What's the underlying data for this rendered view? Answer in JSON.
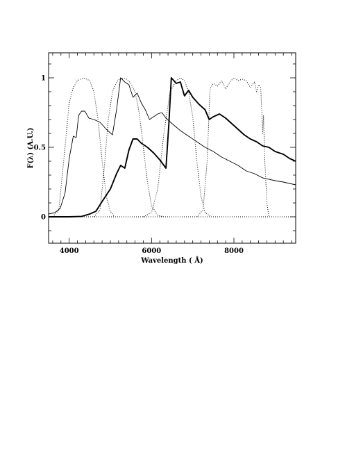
{
  "chart_data": {
    "type": "line",
    "title": "",
    "xlabel": "Wavelength ( Å)",
    "ylabel": "F(λ)  (A.U.)",
    "xlim": [
      3500,
      9500
    ],
    "ylim": [
      -0.19,
      1.18
    ],
    "x_ticks": [
      {
        "value": 4000,
        "label": "4000"
      },
      {
        "value": 6000,
        "label": "6000"
      },
      {
        "value": 8000,
        "label": "8000"
      }
    ],
    "y_ticks": [
      {
        "value": 0,
        "label": "0"
      },
      {
        "value": 0.5,
        "label": "0.5"
      },
      {
        "value": 1,
        "label": "1"
      }
    ],
    "x_minor_step": 200,
    "y_minor_step": 0.1,
    "grid": false,
    "legend": "none",
    "series": [
      {
        "style": "solid-thin",
        "points": [
          [
            3500,
            0.02
          ],
          [
            3650,
            0.03
          ],
          [
            3780,
            0.06
          ],
          [
            3900,
            0.17
          ],
          [
            4000,
            0.42
          ],
          [
            4100,
            0.58
          ],
          [
            4170,
            0.57
          ],
          [
            4230,
            0.73
          ],
          [
            4300,
            0.76
          ],
          [
            4380,
            0.76
          ],
          [
            4480,
            0.71
          ],
          [
            4600,
            0.7
          ],
          [
            4750,
            0.68
          ],
          [
            4900,
            0.63
          ],
          [
            5050,
            0.59
          ],
          [
            5150,
            0.77
          ],
          [
            5250,
            1.0
          ],
          [
            5350,
            0.97
          ],
          [
            5450,
            0.95
          ],
          [
            5550,
            0.86
          ],
          [
            5650,
            0.89
          ],
          [
            5750,
            0.82
          ],
          [
            5850,
            0.77
          ],
          [
            5950,
            0.7
          ],
          [
            6050,
            0.72
          ],
          [
            6150,
            0.74
          ],
          [
            6250,
            0.75
          ],
          [
            6350,
            0.71
          ],
          [
            6500,
            0.67
          ],
          [
            6700,
            0.62
          ],
          [
            6900,
            0.58
          ],
          [
            7100,
            0.54
          ],
          [
            7300,
            0.5
          ],
          [
            7500,
            0.47
          ],
          [
            7700,
            0.43
          ],
          [
            7900,
            0.4
          ],
          [
            8100,
            0.37
          ],
          [
            8300,
            0.33
          ],
          [
            8500,
            0.31
          ],
          [
            8700,
            0.28
          ],
          [
            9000,
            0.26
          ],
          [
            9200,
            0.25
          ],
          [
            9500,
            0.23
          ]
        ]
      },
      {
        "style": "solid-thick",
        "points": [
          [
            3500,
            0.0
          ],
          [
            4000,
            0.0
          ],
          [
            4300,
            0.003
          ],
          [
            4500,
            0.02
          ],
          [
            4650,
            0.04
          ],
          [
            4800,
            0.11
          ],
          [
            5000,
            0.2
          ],
          [
            5150,
            0.31
          ],
          [
            5250,
            0.37
          ],
          [
            5350,
            0.35
          ],
          [
            5450,
            0.48
          ],
          [
            5550,
            0.56
          ],
          [
            5650,
            0.56
          ],
          [
            5750,
            0.53
          ],
          [
            5900,
            0.5
          ],
          [
            6050,
            0.46
          ],
          [
            6200,
            0.41
          ],
          [
            6350,
            0.35
          ],
          [
            6420,
            0.67
          ],
          [
            6480,
            1.0
          ],
          [
            6600,
            0.96
          ],
          [
            6700,
            0.97
          ],
          [
            6800,
            0.87
          ],
          [
            6900,
            0.91
          ],
          [
            7000,
            0.86
          ],
          [
            7150,
            0.81
          ],
          [
            7300,
            0.77
          ],
          [
            7400,
            0.7
          ],
          [
            7500,
            0.72
          ],
          [
            7650,
            0.74
          ],
          [
            7800,
            0.71
          ],
          [
            7950,
            0.67
          ],
          [
            8100,
            0.63
          ],
          [
            8250,
            0.59
          ],
          [
            8400,
            0.56
          ],
          [
            8550,
            0.54
          ],
          [
            8700,
            0.51
          ],
          [
            8850,
            0.5
          ],
          [
            9000,
            0.47
          ],
          [
            9200,
            0.45
          ],
          [
            9350,
            0.42
          ],
          [
            9500,
            0.4
          ]
        ]
      },
      {
        "style": "dotted",
        "points": [
          [
            3600,
            0.0
          ],
          [
            3750,
            0.05
          ],
          [
            3900,
            0.5
          ],
          [
            4000,
            0.82
          ],
          [
            4100,
            0.93
          ],
          [
            4200,
            0.98
          ],
          [
            4350,
            1.0
          ],
          [
            4500,
            0.98
          ],
          [
            4600,
            0.9
          ],
          [
            4700,
            0.7
          ],
          [
            4800,
            0.4
          ],
          [
            4900,
            0.15
          ],
          [
            5000,
            0.04
          ],
          [
            5100,
            0.0
          ]
        ]
      },
      {
        "style": "dotted",
        "points": [
          [
            4600,
            0.0
          ],
          [
            4750,
            0.05
          ],
          [
            4850,
            0.35
          ],
          [
            4950,
            0.7
          ],
          [
            5050,
            0.9
          ],
          [
            5150,
            0.97
          ],
          [
            5250,
            1.0
          ],
          [
            5400,
            0.99
          ],
          [
            5500,
            0.96
          ],
          [
            5600,
            0.9
          ],
          [
            5700,
            0.75
          ],
          [
            5800,
            0.5
          ],
          [
            5900,
            0.25
          ],
          [
            6000,
            0.08
          ],
          [
            6150,
            0.01
          ],
          [
            6300,
            0.0
          ]
        ]
      },
      {
        "style": "dotted",
        "points": [
          [
            5800,
            0.0
          ],
          [
            6000,
            0.03
          ],
          [
            6150,
            0.2
          ],
          [
            6300,
            0.6
          ],
          [
            6450,
            0.9
          ],
          [
            6600,
            0.98
          ],
          [
            6700,
            1.0
          ],
          [
            6800,
            0.98
          ],
          [
            6900,
            0.9
          ],
          [
            7000,
            0.72
          ],
          [
            7100,
            0.4
          ],
          [
            7200,
            0.15
          ],
          [
            7300,
            0.03
          ],
          [
            7450,
            0.0
          ]
        ]
      },
      {
        "style": "dotted",
        "points": [
          [
            7100,
            0.0
          ],
          [
            7250,
            0.05
          ],
          [
            7350,
            0.4
          ],
          [
            7420,
            0.92
          ],
          [
            7500,
            0.96
          ],
          [
            7600,
            0.94
          ],
          [
            7700,
            0.98
          ],
          [
            7800,
            0.92
          ],
          [
            7900,
            0.97
          ],
          [
            8000,
            1.0
          ],
          [
            8100,
            0.98
          ],
          [
            8200,
            0.99
          ],
          [
            8300,
            0.98
          ],
          [
            8400,
            0.93
          ],
          [
            8500,
            0.97
          ],
          [
            8550,
            0.9
          ],
          [
            8600,
            0.95
          ],
          [
            8650,
            0.93
          ],
          [
            8700,
            0.6
          ],
          [
            8720,
            0.73
          ],
          [
            8750,
            0.4
          ],
          [
            8800,
            0.1
          ],
          [
            8850,
            0.0
          ]
        ]
      },
      {
        "style": "dotted",
        "points": [
          [
            3500,
            0.0
          ],
          [
            9500,
            0.0
          ]
        ]
      }
    ]
  }
}
